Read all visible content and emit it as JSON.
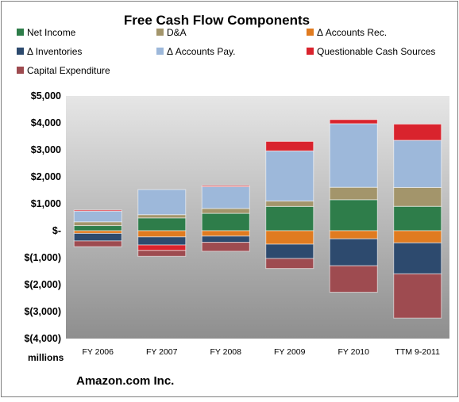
{
  "chart_data": {
    "type": "bar",
    "stacked": true,
    "title": "Free Cash Flow Components",
    "categories": [
      "FY 2006",
      "FY 2007",
      "FY 2008",
      "FY 2009",
      "FY 2010",
      "TTM 9-2011"
    ],
    "ylim": [
      -4000,
      5000
    ],
    "yticks": [
      -4000,
      -3000,
      -2000,
      -1000,
      0,
      1000,
      2000,
      3000,
      4000,
      5000
    ],
    "ytick_labels": [
      "$(4,000)",
      "$(3,000)",
      "$(2,000)",
      "$(1,000)",
      "$-",
      "$1,000",
      "$2,000",
      "$3,000",
      "$4,000",
      "$5,000"
    ],
    "unit_label": "millions",
    "footer": "Amazon.com Inc.",
    "grid": false,
    "legend_position": "top",
    "series": [
      {
        "name": "Net Income",
        "color": "#2e7d4a",
        "values": [
          190,
          476,
          645,
          902,
          1152,
          905
        ]
      },
      {
        "name": "D&A",
        "color": "#a3956b",
        "values": [
          140,
          120,
          180,
          200,
          460,
          700
        ]
      },
      {
        "name": "Δ Accounts Rec.",
        "color": "#e07b20",
        "values": [
          -100,
          -230,
          -200,
          -500,
          -300,
          -450
        ]
      },
      {
        "name": "Δ Inventories",
        "color": "#2d4a6e",
        "values": [
          -280,
          -300,
          -230,
          -530,
          -1000,
          -1150
        ]
      },
      {
        "name": "Δ Accounts Pay.",
        "color": "#9db8da",
        "values": [
          400,
          930,
          810,
          1860,
          2360,
          1750
        ]
      },
      {
        "name": "Questionable Cash Sources",
        "color": "#d9232d",
        "values": [
          40,
          -200,
          40,
          350,
          150,
          600
        ]
      },
      {
        "name": "Capital Expenditure",
        "color": "#9e4b50",
        "values": [
          -210,
          -220,
          -330,
          -370,
          -980,
          -1640
        ]
      }
    ]
  }
}
